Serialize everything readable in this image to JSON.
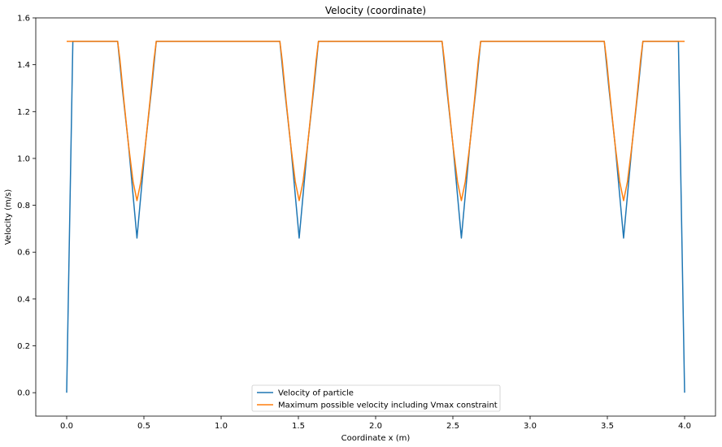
{
  "chart_data": {
    "type": "line",
    "title": "Velocity (coordinate)",
    "xlabel": "Coordinate x (m)",
    "ylabel": "Velocity (m/s)",
    "xlim": [
      -0.2,
      4.2
    ],
    "ylim": [
      -0.1,
      1.6
    ],
    "xticks": [
      "0.0",
      "0.5",
      "1.0",
      "1.5",
      "2.0",
      "2.5",
      "3.0",
      "3.5",
      "4.0"
    ],
    "yticks": [
      "0.0",
      "0.2",
      "0.4",
      "0.6",
      "0.8",
      "1.0",
      "1.2",
      "1.4",
      "1.6"
    ],
    "grid": false,
    "legend_position": "bottom-center",
    "series": [
      {
        "name": "Velocity of particle",
        "color": "#1f77b4",
        "x": [
          0.0,
          0.04,
          0.33,
          0.36,
          0.4,
          0.455,
          0.51,
          0.55,
          0.58,
          1.38,
          1.41,
          1.45,
          1.505,
          1.56,
          1.6,
          1.63,
          2.43,
          2.46,
          2.5,
          2.555,
          2.61,
          2.65,
          2.68,
          3.48,
          3.51,
          3.55,
          3.605,
          3.66,
          3.7,
          3.73,
          3.96,
          4.0
        ],
        "y": [
          0.0,
          1.5,
          1.5,
          1.3,
          1.06,
          0.66,
          1.06,
          1.3,
          1.5,
          1.5,
          1.3,
          1.06,
          0.66,
          1.06,
          1.3,
          1.5,
          1.5,
          1.3,
          1.06,
          0.66,
          1.06,
          1.3,
          1.5,
          1.5,
          1.3,
          1.06,
          0.66,
          1.06,
          1.3,
          1.5,
          1.5,
          0.0
        ]
      },
      {
        "name": "Maximum possible velocity including Vmax constraint",
        "color": "#ff7f0e",
        "x": [
          0.0,
          0.33,
          0.345,
          0.37,
          0.4,
          0.43,
          0.455,
          0.48,
          0.51,
          0.54,
          0.565,
          0.58,
          1.38,
          1.395,
          1.42,
          1.45,
          1.48,
          1.505,
          1.53,
          1.56,
          1.59,
          1.615,
          1.63,
          2.43,
          2.445,
          2.47,
          2.5,
          2.53,
          2.555,
          2.58,
          2.61,
          2.64,
          2.665,
          2.68,
          3.48,
          3.495,
          3.52,
          3.55,
          3.58,
          3.605,
          3.63,
          3.66,
          3.69,
          3.715,
          3.73,
          4.0
        ],
        "y": [
          1.5,
          1.5,
          1.42,
          1.25,
          1.06,
          0.9,
          0.82,
          0.9,
          1.06,
          1.25,
          1.42,
          1.5,
          1.5,
          1.42,
          1.25,
          1.06,
          0.9,
          0.82,
          0.9,
          1.06,
          1.25,
          1.42,
          1.5,
          1.5,
          1.42,
          1.25,
          1.06,
          0.9,
          0.82,
          0.9,
          1.06,
          1.25,
          1.42,
          1.5,
          1.5,
          1.42,
          1.25,
          1.06,
          0.9,
          0.82,
          0.9,
          1.06,
          1.25,
          1.42,
          1.5,
          1.5
        ]
      }
    ]
  }
}
